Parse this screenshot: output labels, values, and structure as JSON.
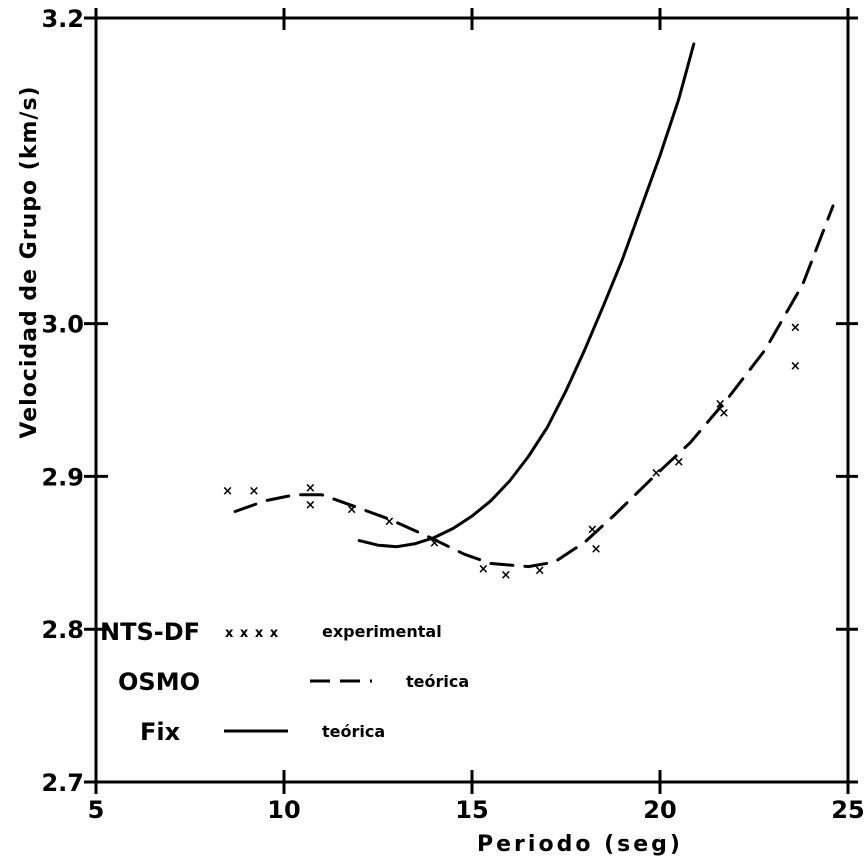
{
  "chart_data": {
    "type": "line",
    "title": "",
    "xlabel": "Periodo (seg)",
    "ylabel": "Velocidad de Grupo (km/s)",
    "xlim": [
      5,
      25
    ],
    "ylim": [
      2.7,
      3.2
    ],
    "x_ticks": [
      5,
      10,
      15,
      20,
      25
    ],
    "x_tick_labels": [
      "5",
      "10",
      "15",
      "20",
      "25"
    ],
    "y_ticks": [
      2.7,
      2.8,
      2.9,
      3.0,
      3.2
    ],
    "y_tick_labels": [
      "2.7",
      "2.8",
      "2.9",
      "3.0",
      "3.2"
    ],
    "legend_position": "bottom-left",
    "series": [
      {
        "name": "NTS-DF",
        "description": "experimental",
        "legend_marker": "x x x x",
        "style": "markers",
        "points": [
          [
            8.5,
            2.891
          ],
          [
            9.2,
            2.891
          ],
          [
            10.7,
            2.893
          ],
          [
            10.7,
            2.882
          ],
          [
            11.8,
            2.879
          ],
          [
            12.8,
            2.871
          ],
          [
            14.0,
            2.857
          ],
          [
            15.3,
            2.84
          ],
          [
            15.9,
            2.836
          ],
          [
            16.8,
            2.839
          ],
          [
            18.2,
            2.866
          ],
          [
            18.3,
            2.853
          ],
          [
            19.9,
            2.903
          ],
          [
            20.5,
            2.91
          ],
          [
            21.6,
            2.948
          ],
          [
            21.7,
            2.942
          ],
          [
            23.6,
            2.998
          ],
          [
            23.6,
            2.973
          ]
        ]
      },
      {
        "name": "OSMO",
        "description": "teórica",
        "style": "dashed",
        "points": [
          [
            8.7,
            2.877
          ],
          [
            9.5,
            2.884
          ],
          [
            10.3,
            2.888
          ],
          [
            11.0,
            2.888
          ],
          [
            11.8,
            2.881
          ],
          [
            12.8,
            2.872
          ],
          [
            13.8,
            2.861
          ],
          [
            14.8,
            2.849
          ],
          [
            15.5,
            2.843
          ],
          [
            16.5,
            2.841
          ],
          [
            17.2,
            2.844
          ],
          [
            18.0,
            2.857
          ],
          [
            18.8,
            2.875
          ],
          [
            19.8,
            2.899
          ],
          [
            20.8,
            2.922
          ],
          [
            21.8,
            2.951
          ],
          [
            22.8,
            2.983
          ],
          [
            23.8,
            3.026
          ],
          [
            24.6,
            3.077
          ]
        ]
      },
      {
        "name": "Fix",
        "description": "teórica",
        "style": "solid",
        "points": [
          [
            12.0,
            2.858
          ],
          [
            12.5,
            2.855
          ],
          [
            13.0,
            2.854
          ],
          [
            13.5,
            2.856
          ],
          [
            14.0,
            2.86
          ],
          [
            14.5,
            2.866
          ],
          [
            15.0,
            2.874
          ],
          [
            15.5,
            2.884
          ],
          [
            16.0,
            2.897
          ],
          [
            16.5,
            2.913
          ],
          [
            17.0,
            2.932
          ],
          [
            17.5,
            2.956
          ],
          [
            18.0,
            2.983
          ],
          [
            18.5,
            3.012
          ],
          [
            19.0,
            3.042
          ],
          [
            19.5,
            3.076
          ],
          [
            20.0,
            3.11
          ],
          [
            20.5,
            3.147
          ],
          [
            20.9,
            3.183
          ]
        ]
      }
    ]
  }
}
